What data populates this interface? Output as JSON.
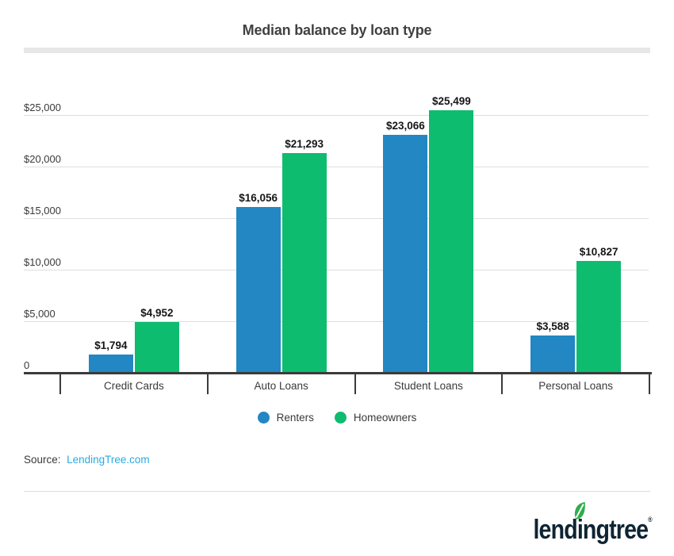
{
  "title": "Median balance by loan type",
  "chart_data": {
    "type": "bar",
    "categories": [
      "Credit Cards",
      "Auto Loans",
      "Student Loans",
      "Personal Loans"
    ],
    "series": [
      {
        "name": "Renters",
        "color": "#2287c2",
        "values": [
          1794,
          16056,
          23066,
          3588
        ],
        "labels": [
          "$1,794",
          "$16,056",
          "$23,066",
          "$3,588"
        ]
      },
      {
        "name": "Homeowners",
        "color": "#0ebc6f",
        "values": [
          4952,
          21293,
          25499,
          10827
        ],
        "labels": [
          "$4,952",
          "$21,293",
          "$25,499",
          "$10,827"
        ]
      }
    ],
    "y_axis": {
      "ticks": [
        "0",
        "$5,000",
        "$10,000",
        "$15,000",
        "$20,000",
        "$25,000"
      ],
      "min": 0,
      "max": 25000,
      "tick_step": 5000,
      "grid": true
    },
    "legend_position": "bottom",
    "xlabel": "",
    "ylabel": ""
  },
  "source": {
    "label": "Source:",
    "link_text": "LendingTree.com",
    "link_color": "#29abe2"
  },
  "footer": {
    "logo_text": "lendingtree",
    "logo_mark": "®",
    "logo_color": "#0e2433",
    "leaf_color": "#2fad4b"
  }
}
